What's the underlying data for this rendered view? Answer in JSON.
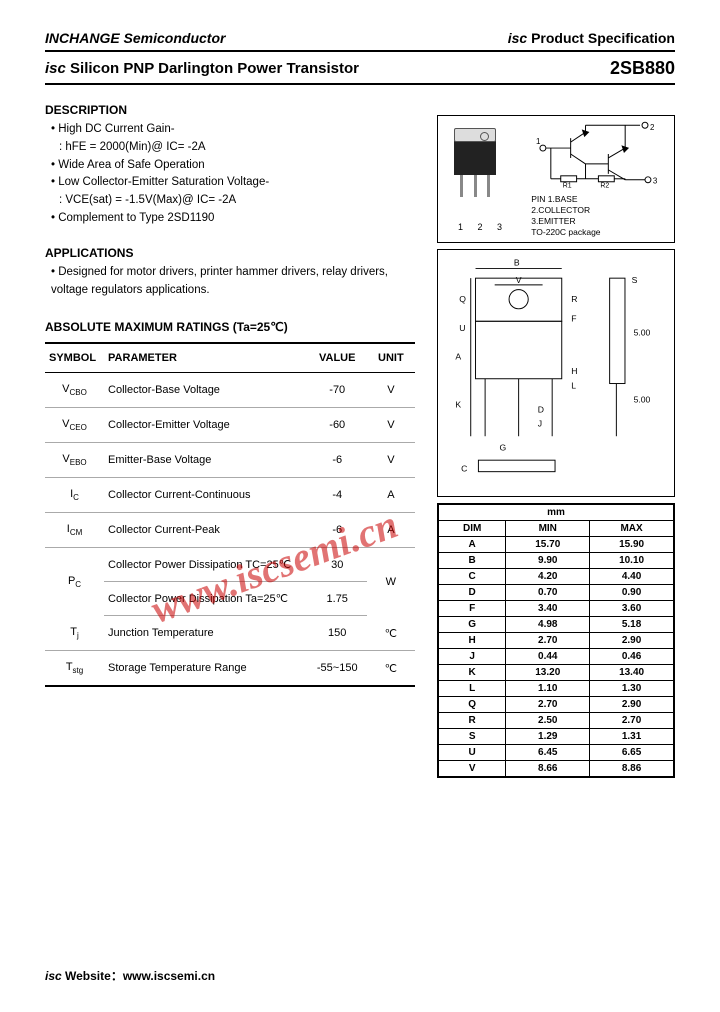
{
  "header": {
    "company": "INCHANGE Semiconductor",
    "spec": "isc Product Specification"
  },
  "title": {
    "text": "isc Silicon PNP Darlington Power Transistor",
    "part": "2SB880"
  },
  "description": {
    "heading": "DESCRIPTION",
    "lines": [
      {
        "t": "High DC Current Gain-",
        "cont": false
      },
      {
        "t": ": hFE = 2000(Min)@ IC= -2A",
        "cont": true
      },
      {
        "t": "Wide Area of Safe Operation",
        "cont": false
      },
      {
        "t": "Low Collector-Emitter Saturation Voltage-",
        "cont": false
      },
      {
        "t": ": VCE(sat) = -1.5V(Max)@ IC= -2A",
        "cont": true
      },
      {
        "t": "Complement to Type 2SD1190",
        "cont": false
      }
    ]
  },
  "applications": {
    "heading": "APPLICATIONS",
    "text": "Designed for motor drivers, printer hammer drivers, relay drivers, voltage regulators applications."
  },
  "ratings": {
    "heading": "ABSOLUTE MAXIMUM RATINGS (Ta=25℃)",
    "cols": [
      "SYMBOL",
      "PARAMETER",
      "VALUE",
      "UNIT"
    ],
    "rows": [
      {
        "sym": "V",
        "sub": "CBO",
        "param": "Collector-Base Voltage",
        "val": "-70",
        "unit": "V"
      },
      {
        "sym": "V",
        "sub": "CEO",
        "param": "Collector-Emitter Voltage",
        "val": "-60",
        "unit": "V"
      },
      {
        "sym": "V",
        "sub": "EBO",
        "param": "Emitter-Base Voltage",
        "val": "-6",
        "unit": "V"
      },
      {
        "sym": "I",
        "sub": "C",
        "param": "Collector Current-Continuous",
        "val": "-4",
        "unit": "A"
      },
      {
        "sym": "I",
        "sub": "CM",
        "param": "Collector Current-Peak",
        "val": "-6",
        "unit": "A"
      }
    ],
    "pc_group": {
      "sym": "P",
      "sub": "C",
      "r1_param": "Collector Power Dissipation TC=25℃",
      "r1_val": "30",
      "r2_param": "Collector Power Dissipation Ta=25℃",
      "r2_val": "1.75",
      "unit": "W"
    },
    "tj": {
      "sym": "T",
      "sub": "j",
      "param": "Junction Temperature",
      "val": "150",
      "unit": "℃"
    },
    "tstg": {
      "sym": "T",
      "sub": "stg",
      "param": "Storage Temperature Range",
      "val": "-55~150",
      "unit": "℃"
    }
  },
  "package": {
    "pins_numbers": "1 2 3",
    "pin_desc": [
      "PIN 1.BASE",
      "2.COLLECTOR",
      "3.EMITTER",
      "TO-220C package"
    ]
  },
  "mm_table": {
    "heading": "mm",
    "cols": [
      "DIM",
      "MIN",
      "MAX"
    ],
    "rows": [
      [
        "A",
        "15.70",
        "15.90"
      ],
      [
        "B",
        "9.90",
        "10.10"
      ],
      [
        "C",
        "4.20",
        "4.40"
      ],
      [
        "D",
        "0.70",
        "0.90"
      ],
      [
        "F",
        "3.40",
        "3.60"
      ],
      [
        "G",
        "4.98",
        "5.18"
      ],
      [
        "H",
        "2.70",
        "2.90"
      ],
      [
        "J",
        "0.44",
        "0.46"
      ],
      [
        "K",
        "13.20",
        "13.40"
      ],
      [
        "L",
        "1.10",
        "1.30"
      ],
      [
        "Q",
        "2.70",
        "2.90"
      ],
      [
        "R",
        "2.50",
        "2.70"
      ],
      [
        "S",
        "1.29",
        "1.31"
      ],
      [
        "U",
        "6.45",
        "6.65"
      ],
      [
        "V",
        "8.66",
        "8.86"
      ]
    ]
  },
  "watermark": "www.iscsemi.cn",
  "footer": "isc Website：www.iscsemi.cn"
}
